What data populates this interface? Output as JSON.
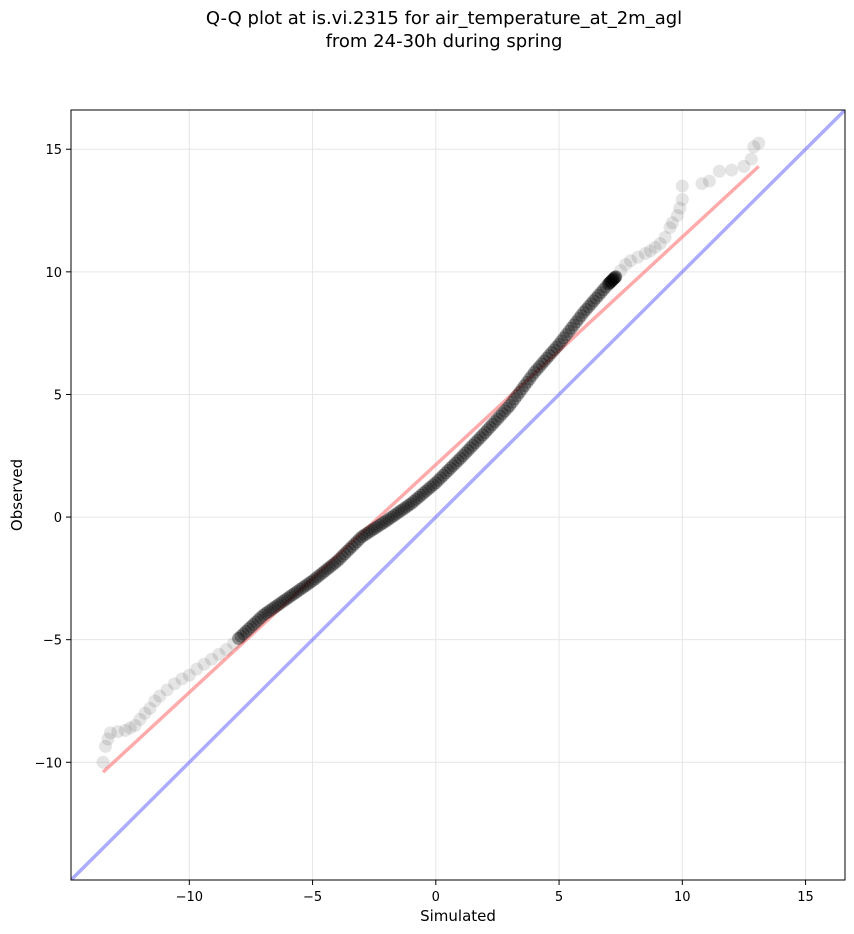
{
  "chart_data": {
    "type": "scatter",
    "title": "Q-Q plot at is.vi.2315 for air_temperature_at_2m_agl",
    "subtitle": "from 24-30h during spring",
    "xlabel": "Simulated",
    "ylabel": "Observed",
    "xlim": [
      -14.8,
      16.6
    ],
    "ylim": [
      -14.8,
      16.6
    ],
    "xticks": [
      -10,
      -5,
      0,
      5,
      10,
      15
    ],
    "yticks": [
      -10,
      -5,
      0,
      5,
      10,
      15
    ],
    "xtick_labels": [
      "−10",
      "−5",
      "0",
      "5",
      "10",
      "15"
    ],
    "ytick_labels": [
      "−10",
      "−5",
      "0",
      "5",
      "10",
      "15"
    ],
    "grid": true,
    "colors": {
      "points": "#000000",
      "fit_line": "#ff6666",
      "identity_line": "#5a5aff",
      "grid": "#e6e6e6"
    },
    "fit_line": {
      "x": [
        -13.5,
        13.1
      ],
      "y": [
        -10.4,
        14.3
      ]
    },
    "identity_line": {
      "x": [
        -14.8,
        16.6
      ],
      "y": [
        -14.8,
        16.6
      ]
    },
    "tails": [
      [
        -13.5,
        -10.0
      ],
      [
        -13.4,
        -9.35
      ],
      [
        -13.3,
        -9.05
      ],
      [
        -13.2,
        -8.8
      ],
      [
        -12.9,
        -8.75
      ],
      [
        -12.6,
        -8.7
      ],
      [
        -12.4,
        -8.6
      ],
      [
        -12.2,
        -8.5
      ],
      [
        -12.0,
        -8.25
      ],
      [
        -11.8,
        -8.0
      ],
      [
        -11.6,
        -7.8
      ],
      [
        -11.4,
        -7.5
      ],
      [
        -11.2,
        -7.3
      ],
      [
        -10.9,
        -7.05
      ],
      [
        -10.6,
        -6.8
      ],
      [
        -10.3,
        -6.6
      ],
      [
        -10.0,
        -6.45
      ],
      [
        -9.7,
        -6.2
      ],
      [
        -9.4,
        -6.0
      ],
      [
        -9.1,
        -5.8
      ],
      [
        -8.8,
        -5.6
      ],
      [
        -8.5,
        -5.4
      ],
      [
        -8.2,
        -5.15
      ],
      [
        -8.0,
        -4.95
      ],
      [
        7.3,
        9.8
      ],
      [
        7.5,
        10.05
      ],
      [
        7.7,
        10.3
      ],
      [
        7.9,
        10.45
      ],
      [
        8.2,
        10.6
      ],
      [
        8.5,
        10.75
      ],
      [
        8.7,
        10.85
      ],
      [
        8.9,
        11.0
      ],
      [
        9.1,
        11.15
      ],
      [
        9.3,
        11.4
      ],
      [
        9.5,
        11.8
      ],
      [
        9.6,
        12.0
      ],
      [
        9.8,
        12.3
      ],
      [
        9.9,
        12.6
      ],
      [
        10.0,
        12.95
      ],
      [
        10.0,
        13.5
      ],
      [
        10.8,
        13.6
      ],
      [
        11.1,
        13.7
      ],
      [
        11.5,
        14.1
      ],
      [
        12.0,
        14.15
      ],
      [
        12.5,
        14.3
      ],
      [
        12.8,
        14.6
      ],
      [
        12.9,
        15.1
      ],
      [
        13.1,
        15.25
      ]
    ],
    "core_curve": [
      [
        -8.0,
        -4.95
      ],
      [
        -7.0,
        -4.0
      ],
      [
        -6.0,
        -3.3
      ],
      [
        -5.0,
        -2.6
      ],
      [
        -4.0,
        -1.8
      ],
      [
        -3.0,
        -0.8
      ],
      [
        -2.0,
        -0.15
      ],
      [
        -1.0,
        0.55
      ],
      [
        0.0,
        1.4
      ],
      [
        1.0,
        2.4
      ],
      [
        2.0,
        3.45
      ],
      [
        3.0,
        4.55
      ],
      [
        4.0,
        5.9
      ],
      [
        5.0,
        7.05
      ],
      [
        6.0,
        8.35
      ],
      [
        7.0,
        9.5
      ],
      [
        7.3,
        9.8
      ]
    ]
  }
}
